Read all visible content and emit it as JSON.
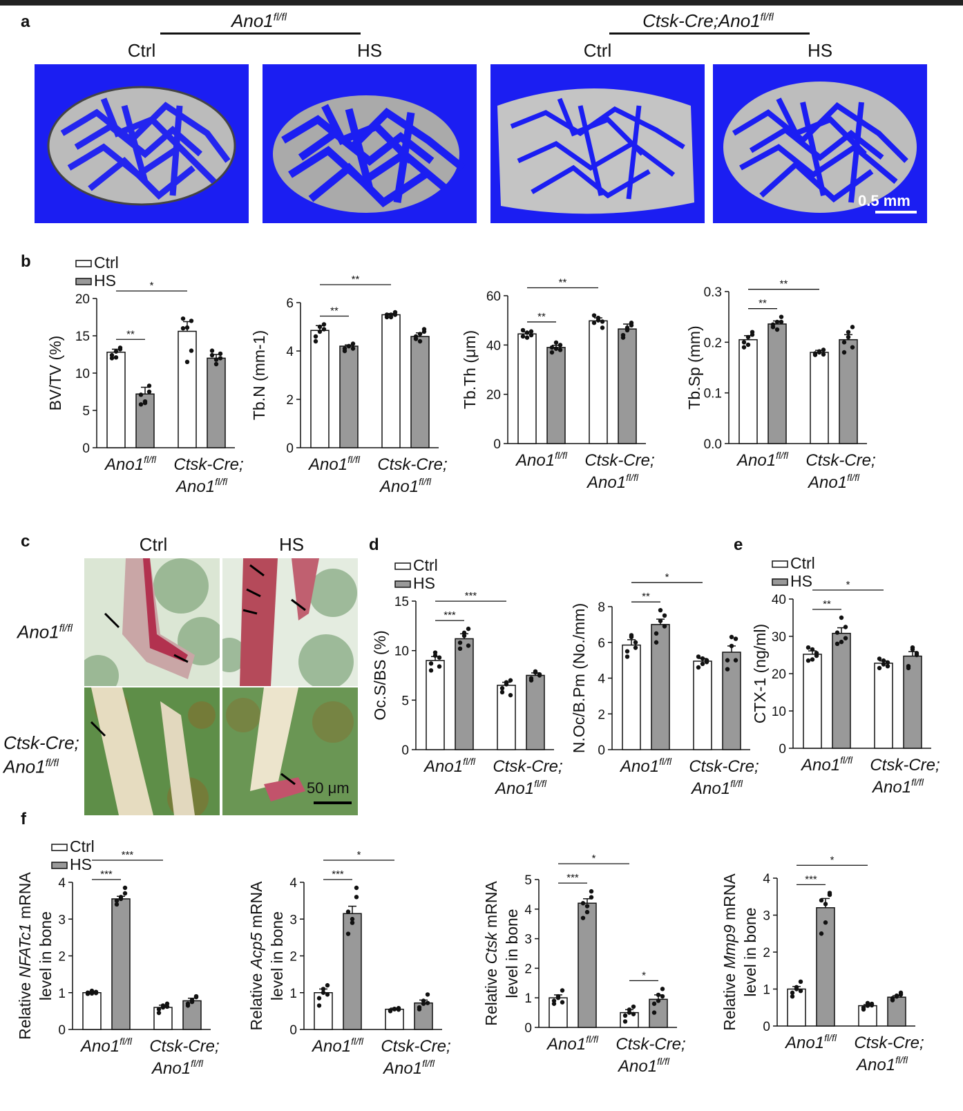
{
  "panels": {
    "a": "a",
    "b": "b",
    "c": "c",
    "d": "d",
    "e": "e",
    "f": "f"
  },
  "panel_a": {
    "groups": [
      {
        "label": "Ano1",
        "sup": "fl/fl"
      },
      {
        "label": "Ctsk-Cre;Ano1",
        "sup": "fl/fl"
      }
    ],
    "conditions": [
      "Ctrl",
      "HS",
      "Ctrl",
      "HS"
    ],
    "scale_bar": "0.5 mm"
  },
  "panel_c": {
    "columns": [
      "Ctrl",
      "HS"
    ],
    "rows": [
      "Ano1",
      "Ctsk-Cre;",
      "Ano1"
    ],
    "row_sup": "fl/fl",
    "scale_bar": "50 μm"
  },
  "legend": {
    "ctrl": "Ctrl",
    "hs": "HS"
  },
  "colors": {
    "ctrl_fill": "#ffffff",
    "hs_fill": "#999999",
    "axis": "#111111",
    "ct_background": "#1b1ef2"
  },
  "chart_data": [
    {
      "id": "b1",
      "type": "bar",
      "ylabel": "BV/TV (%)",
      "ylim": [
        0,
        20
      ],
      "yticks": [
        "0",
        "5",
        "10",
        "15",
        "20"
      ],
      "categories": [
        "Ano1fl/fl",
        "Ctsk-Cre;Ano1fl/fl"
      ],
      "series": [
        {
          "name": "Ctrl",
          "values": [
            12.8,
            15.6
          ],
          "err": [
            0.4,
            1.3
          ]
        },
        {
          "name": "HS",
          "values": [
            7.2,
            12.0
          ],
          "err": [
            0.9,
            0.5
          ]
        }
      ],
      "points": [
        [
          12.0,
          12.9,
          13.4,
          12.4,
          12.1,
          13.2
        ],
        [
          5.8,
          6.0,
          8.3,
          7.1,
          6.2,
          7.5
        ],
        [
          17.3,
          16.1,
          13.0,
          16.0,
          11.5,
          17.0
        ],
        [
          12.4,
          11.2,
          12.0,
          13.0,
          11.8,
          12.6
        ]
      ],
      "sig": [
        {
          "from": 0,
          "to": 1,
          "label": "**"
        },
        {
          "from": 0,
          "to": 2,
          "label": "*"
        }
      ],
      "legend": true
    },
    {
      "id": "b2",
      "type": "bar",
      "ylabel": "Tb.N (mm-1)",
      "ylim": [
        0,
        6
      ],
      "yticks": [
        "0",
        "2",
        "4",
        "6"
      ],
      "categories": [
        "Ano1fl/fl",
        "Ctsk-Cre;Ano1fl/fl"
      ],
      "series": [
        {
          "name": "Ctrl",
          "values": [
            4.85,
            5.5
          ],
          "err": [
            0.2,
            0.05
          ]
        },
        {
          "name": "HS",
          "values": [
            4.2,
            4.6
          ],
          "err": [
            0.05,
            0.15
          ]
        }
      ],
      "points": [
        [
          4.6,
          5.0,
          5.1,
          4.4,
          4.8,
          4.9
        ],
        [
          4.1,
          4.2,
          4.3,
          4.0,
          4.2,
          4.1
        ],
        [
          5.4,
          5.5,
          5.6,
          5.5,
          5.4,
          5.5
        ],
        [
          4.6,
          4.4,
          4.9,
          4.5,
          4.7,
          4.8
        ]
      ],
      "sig": [
        {
          "from": 0,
          "to": 1,
          "label": "**"
        },
        {
          "from": 0,
          "to": 2,
          "label": "**"
        }
      ],
      "legend": false
    },
    {
      "id": "b3",
      "type": "bar",
      "ylabel": "Tb.Th (μm)",
      "ylim": [
        0,
        60
      ],
      "yticks": [
        "0",
        "20",
        "40",
        "60"
      ],
      "categories": [
        "Ano1fl/fl",
        "Ctsk-Cre;Ano1fl/fl"
      ],
      "series": [
        {
          "name": "Ctrl",
          "values": [
            44.5,
            49.8
          ],
          "err": [
            0.8,
            1.2
          ]
        },
        {
          "name": "HS",
          "values": [
            39.0,
            46.5
          ],
          "err": [
            0.9,
            2.0
          ]
        }
      ],
      "points": [
        [
          43.5,
          45.0,
          44.0,
          46.0,
          43.0,
          45.5
        ],
        [
          37.0,
          38.5,
          40.0,
          39.0,
          41.0,
          38.0
        ],
        [
          49.0,
          51.0,
          47.0,
          52.0,
          50.0,
          49.5
        ],
        [
          44.0,
          47.0,
          49.0,
          43.0,
          46.0,
          48.0
        ]
      ],
      "sig": [
        {
          "from": 0,
          "to": 1,
          "label": "**"
        },
        {
          "from": 0,
          "to": 2,
          "label": "**"
        }
      ],
      "legend": false
    },
    {
      "id": "b4",
      "type": "bar",
      "ylabel": "Tb.Sp (mm)",
      "ylim": [
        0,
        0.3
      ],
      "yticks": [
        "0.0",
        "0.1",
        "0.2",
        "0.3"
      ],
      "categories": [
        "Ano1fl/fl",
        "Ctsk-Cre;Ano1fl/fl"
      ],
      "series": [
        {
          "name": "Ctrl",
          "values": [
            0.205,
            0.18
          ],
          "err": [
            0.008,
            0.004
          ]
        },
        {
          "name": "HS",
          "values": [
            0.236,
            0.205
          ],
          "err": [
            0.006,
            0.01
          ]
        }
      ],
      "points": [
        [
          0.19,
          0.21,
          0.22,
          0.2,
          0.195,
          0.215
        ],
        [
          0.23,
          0.24,
          0.25,
          0.235,
          0.225,
          0.24
        ],
        [
          0.175,
          0.18,
          0.185,
          0.178,
          0.182,
          0.176
        ],
        [
          0.18,
          0.22,
          0.23,
          0.2,
          0.21,
          0.19
        ]
      ],
      "sig": [
        {
          "from": 0,
          "to": 1,
          "label": "**"
        },
        {
          "from": 0,
          "to": 2,
          "label": "**"
        }
      ],
      "legend": false
    },
    {
      "id": "d1",
      "type": "bar",
      "ylabel": "Oc.S/BS (%)",
      "ylim": [
        0,
        15
      ],
      "yticks": [
        "0",
        "5",
        "10",
        "15"
      ],
      "categories": [
        "Ano1fl/fl",
        "Ctsk-Cre;Ano1fl/fl"
      ],
      "series": [
        {
          "name": "Ctrl",
          "values": [
            9.0,
            6.5
          ],
          "err": [
            0.4,
            0.3
          ]
        },
        {
          "name": "HS",
          "values": [
            11.2,
            7.5
          ],
          "err": [
            0.5,
            0.25
          ]
        }
      ],
      "points": [
        [
          8.0,
          9.5,
          9.3,
          8.7,
          9.8,
          8.4
        ],
        [
          10.2,
          11.5,
          12.2,
          10.8,
          11.8,
          10.5
        ],
        [
          5.8,
          6.8,
          7.0,
          6.2,
          6.6,
          5.5
        ],
        [
          7.2,
          7.8,
          7.5,
          7.0,
          7.9,
          7.6
        ]
      ],
      "sig": [
        {
          "from": 0,
          "to": 1,
          "label": "***"
        },
        {
          "from": 0,
          "to": 2,
          "label": "***"
        }
      ],
      "legend": true
    },
    {
      "id": "d2",
      "type": "bar",
      "ylabel": "N.Oc/B.Pm (No./mm)",
      "ylim": [
        0,
        8
      ],
      "yticks": [
        "0",
        "2",
        "4",
        "6",
        "8"
      ],
      "categories": [
        "Ano1fl/fl",
        "Ctsk-Cre;Ano1fl/fl"
      ],
      "series": [
        {
          "name": "Ctrl",
          "values": [
            5.85,
            4.95
          ],
          "err": [
            0.3,
            0.15
          ]
        },
        {
          "name": "HS",
          "values": [
            7.0,
            5.45
          ],
          "err": [
            0.3,
            0.35
          ]
        }
      ],
      "points": [
        [
          5.2,
          6.3,
          6.0,
          5.5,
          6.4,
          5.7
        ],
        [
          6.0,
          7.2,
          7.5,
          6.5,
          7.8,
          6.9
        ],
        [
          4.6,
          5.1,
          4.9,
          5.2,
          4.8,
          5.0
        ],
        [
          4.5,
          5.8,
          6.2,
          5.0,
          6.3,
          5.0
        ]
      ],
      "sig": [
        {
          "from": 0,
          "to": 1,
          "label": "**"
        },
        {
          "from": 0,
          "to": 2,
          "label": "*"
        }
      ],
      "legend": false
    },
    {
      "id": "e1",
      "type": "bar",
      "ylabel": "CTX-1 (ng/ml)",
      "ylim": [
        0,
        40
      ],
      "yticks": [
        "0",
        "10",
        "20",
        "30",
        "40"
      ],
      "categories": [
        "Ano1fl/fl",
        "Ctsk-Cre;Ano1fl/fl"
      ],
      "series": [
        {
          "name": "Ctrl",
          "values": [
            25.2,
            22.8
          ],
          "err": [
            0.9,
            0.6
          ]
        },
        {
          "name": "HS",
          "values": [
            30.8,
            24.7
          ],
          "err": [
            1.5,
            1.2
          ]
        }
      ],
      "points": [
        [
          23.5,
          26.5,
          24.8,
          27.0,
          23.8,
          25.5
        ],
        [
          28.0,
          35.0,
          29.5,
          31.0,
          28.5,
          32.5
        ],
        [
          21.5,
          23.5,
          22.0,
          24.0,
          22.5,
          23.0
        ],
        [
          22.0,
          26.5,
          25.0,
          21.5,
          27.0,
          25.5
        ]
      ],
      "sig": [
        {
          "from": 0,
          "to": 1,
          "label": "**"
        },
        {
          "from": 0,
          "to": 2,
          "label": "*"
        }
      ],
      "legend": true
    },
    {
      "id": "f1",
      "type": "bar",
      "ylabel_parts": [
        "Relative ",
        "NFATc1",
        " mRNA"
      ],
      "ylabel2": "level in bone",
      "ylim": [
        0,
        4
      ],
      "yticks": [
        "0",
        "1",
        "2",
        "3",
        "4"
      ],
      "categories": [
        "Ano1fl/fl",
        "Ctsk-Cre;Ano1fl/fl"
      ],
      "series": [
        {
          "name": "Ctrl",
          "values": [
            1.0,
            0.6
          ],
          "err": [
            0.03,
            0.06
          ]
        },
        {
          "name": "HS",
          "values": [
            3.55,
            0.78
          ],
          "err": [
            0.07,
            0.07
          ]
        }
      ],
      "points": [
        [
          1.0,
          0.98,
          1.02,
          0.97,
          1.05,
          0.99
        ],
        [
          3.4,
          3.6,
          3.7,
          3.5,
          3.55,
          3.85
        ],
        [
          0.45,
          0.6,
          0.7,
          0.55,
          0.65,
          0.62
        ],
        [
          0.65,
          0.8,
          0.9,
          0.7,
          0.75,
          0.88
        ]
      ],
      "sig": [
        {
          "from": 0,
          "to": 1,
          "label": "***"
        },
        {
          "from": 0,
          "to": 2,
          "label": "***"
        }
      ],
      "legend": true
    },
    {
      "id": "f2",
      "type": "bar",
      "ylabel_parts": [
        "Relative ",
        "Acp5",
        " mRNA"
      ],
      "ylabel2": "level in bone",
      "ylim": [
        0,
        4
      ],
      "yticks": [
        "0",
        "1",
        "2",
        "3",
        "4"
      ],
      "categories": [
        "Ano1fl/fl",
        "Ctsk-Cre;Ano1fl/fl"
      ],
      "series": [
        {
          "name": "Ctrl",
          "values": [
            1.0,
            0.55
          ],
          "err": [
            0.1,
            0.03
          ]
        },
        {
          "name": "HS",
          "values": [
            3.15,
            0.72
          ],
          "err": [
            0.2,
            0.08
          ]
        }
      ],
      "points": [
        [
          0.65,
          1.0,
          1.2,
          0.85,
          1.1,
          0.95
        ],
        [
          2.6,
          3.0,
          3.6,
          3.2,
          2.9,
          3.85
        ],
        [
          0.5,
          0.55,
          0.58,
          0.52,
          0.56,
          0.54
        ],
        [
          0.55,
          0.7,
          0.95,
          0.6,
          0.78,
          0.72
        ]
      ],
      "sig": [
        {
          "from": 0,
          "to": 1,
          "label": "***"
        },
        {
          "from": 0,
          "to": 2,
          "label": "*"
        }
      ],
      "legend": false
    },
    {
      "id": "f3",
      "type": "bar",
      "ylabel_parts": [
        "Relative ",
        "Ctsk",
        " mRNA"
      ],
      "ylabel2": "level in bone",
      "ylim": [
        0,
        5
      ],
      "yticks": [
        "0",
        "1",
        "2",
        "3",
        "4",
        "5"
      ],
      "categories": [
        "Ano1fl/fl",
        "Ctsk-Cre;Ano1fl/fl"
      ],
      "series": [
        {
          "name": "Ctrl",
          "values": [
            1.0,
            0.5
          ],
          "err": [
            0.1,
            0.1
          ]
        },
        {
          "name": "HS",
          "values": [
            4.2,
            0.95
          ],
          "err": [
            0.15,
            0.15
          ]
        }
      ],
      "points": [
        [
          0.8,
          1.0,
          1.25,
          0.9,
          1.05,
          0.85
        ],
        [
          3.7,
          4.1,
          4.6,
          4.2,
          3.9,
          4.4
        ],
        [
          0.2,
          0.5,
          0.7,
          0.4,
          0.6,
          0.45
        ],
        [
          0.5,
          0.9,
          1.3,
          0.8,
          1.1,
          1.05
        ]
      ],
      "sig": [
        {
          "from": 0,
          "to": 1,
          "label": "***"
        },
        {
          "from": 0,
          "to": 2,
          "label": "*"
        },
        {
          "from": 2,
          "to": 3,
          "label": "*"
        }
      ],
      "legend": false
    },
    {
      "id": "f4",
      "type": "bar",
      "ylabel_parts": [
        "Relative ",
        "Mmp9",
        " mRNA"
      ],
      "ylabel2": "level in bone",
      "ylim": [
        0,
        4
      ],
      "yticks": [
        "0",
        "1",
        "2",
        "3",
        "4"
      ],
      "categories": [
        "Ano1fl/fl",
        "Ctsk-Cre;Ano1fl/fl"
      ],
      "series": [
        {
          "name": "Ctrl",
          "values": [
            1.0,
            0.55
          ],
          "err": [
            0.07,
            0.03
          ]
        },
        {
          "name": "HS",
          "values": [
            3.2,
            0.78
          ],
          "err": [
            0.25,
            0.04
          ]
        }
      ],
      "points": [
        [
          0.8,
          1.0,
          1.2,
          0.9,
          1.05,
          0.95
        ],
        [
          2.5,
          3.3,
          3.6,
          3.4,
          2.8,
          3.55
        ],
        [
          0.45,
          0.55,
          0.6,
          0.5,
          0.62,
          0.56
        ],
        [
          0.7,
          0.8,
          0.85,
          0.75,
          0.82,
          0.9
        ]
      ],
      "sig": [
        {
          "from": 0,
          "to": 1,
          "label": "***"
        },
        {
          "from": 0,
          "to": 2,
          "label": "*"
        }
      ],
      "legend": false
    }
  ],
  "xaxis_labels": {
    "g1": "Ano1",
    "g2a": "Ctsk-Cre;",
    "g2b": "Ano1",
    "sup": "fl/fl"
  }
}
